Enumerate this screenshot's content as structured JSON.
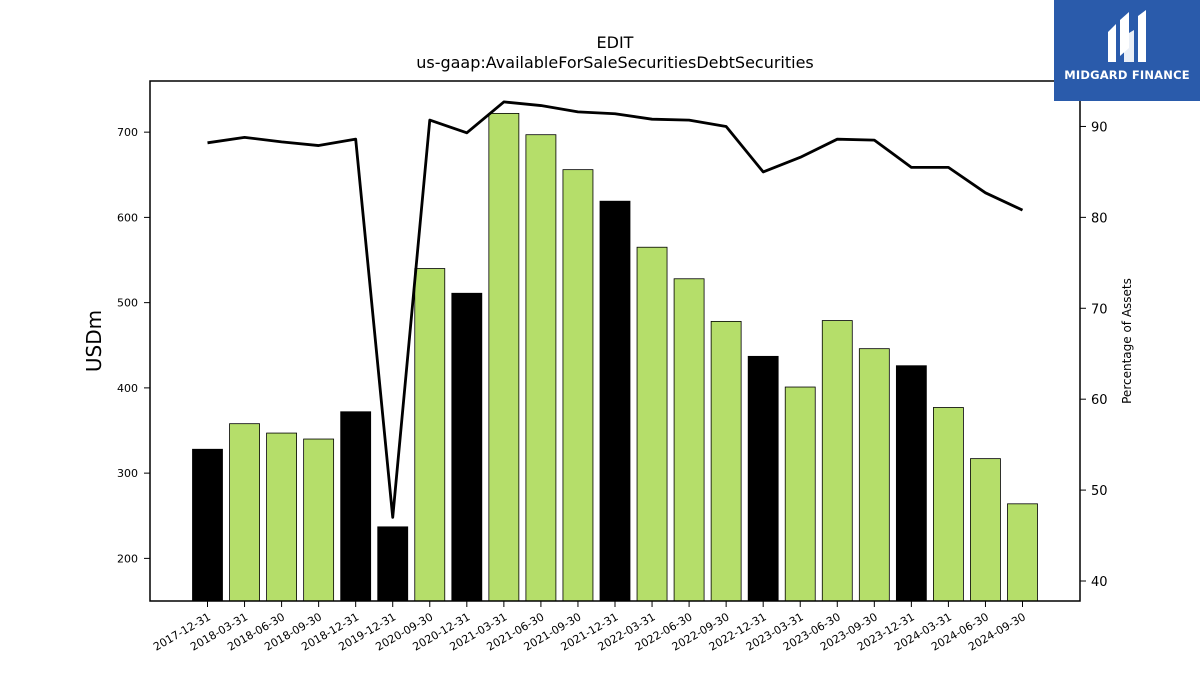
{
  "chart_data": {
    "type": "bar",
    "title": "EDIT",
    "subtitle": "us-gaap:AvailableForSaleSecuritiesDebtSecurities",
    "ylabel": "USDm",
    "y2label": "Percentage of Assets",
    "ylim": [
      150,
      760
    ],
    "y2lim": [
      37.8,
      95
    ],
    "yticks": [
      200,
      300,
      400,
      500,
      600,
      700
    ],
    "y2ticks": [
      40,
      50,
      60,
      70,
      80,
      90
    ],
    "grid": false,
    "categories": [
      "2017-12-31",
      "2018-03-31",
      "2018-06-30",
      "2018-09-30",
      "2018-12-31",
      "2019-12-31",
      "2020-09-30",
      "2020-12-31",
      "2021-03-31",
      "2021-06-30",
      "2021-09-30",
      "2021-12-31",
      "2022-03-31",
      "2022-06-30",
      "2022-09-30",
      "2022-12-31",
      "2023-03-31",
      "2023-06-30",
      "2023-09-30",
      "2023-12-31",
      "2024-03-31",
      "2024-06-30",
      "2024-09-30"
    ],
    "series": [
      {
        "type": "bar",
        "values": [
          328,
          358,
          347,
          340,
          372,
          237,
          540,
          511,
          722,
          697,
          656,
          619,
          565,
          528,
          478,
          437,
          401,
          479,
          446,
          426,
          377,
          317,
          264
        ],
        "bar_colors": [
          "#000000",
          "#b5de6a",
          "#b5de6a",
          "#b5de6a",
          "#000000",
          "#000000",
          "#b5de6a",
          "#000000",
          "#b5de6a",
          "#b5de6a",
          "#b5de6a",
          "#000000",
          "#b5de6a",
          "#b5de6a",
          "#b5de6a",
          "#000000",
          "#b5de6a",
          "#b5de6a",
          "#b5de6a",
          "#000000",
          "#b5de6a",
          "#b5de6a",
          "#b5de6a"
        ]
      },
      {
        "type": "line",
        "axis": "right",
        "color": "#000000",
        "values": [
          88.2,
          88.8,
          88.3,
          87.9,
          88.6,
          47.0,
          90.7,
          89.3,
          92.7,
          92.3,
          91.6,
          91.4,
          90.8,
          90.7,
          90.0,
          85.0,
          86.6,
          88.6,
          88.5,
          85.5,
          85.5,
          82.7,
          80.8
        ]
      }
    ]
  },
  "logo": {
    "text": "MIDGARD FINANCE",
    "color": "#2a5bab"
  }
}
